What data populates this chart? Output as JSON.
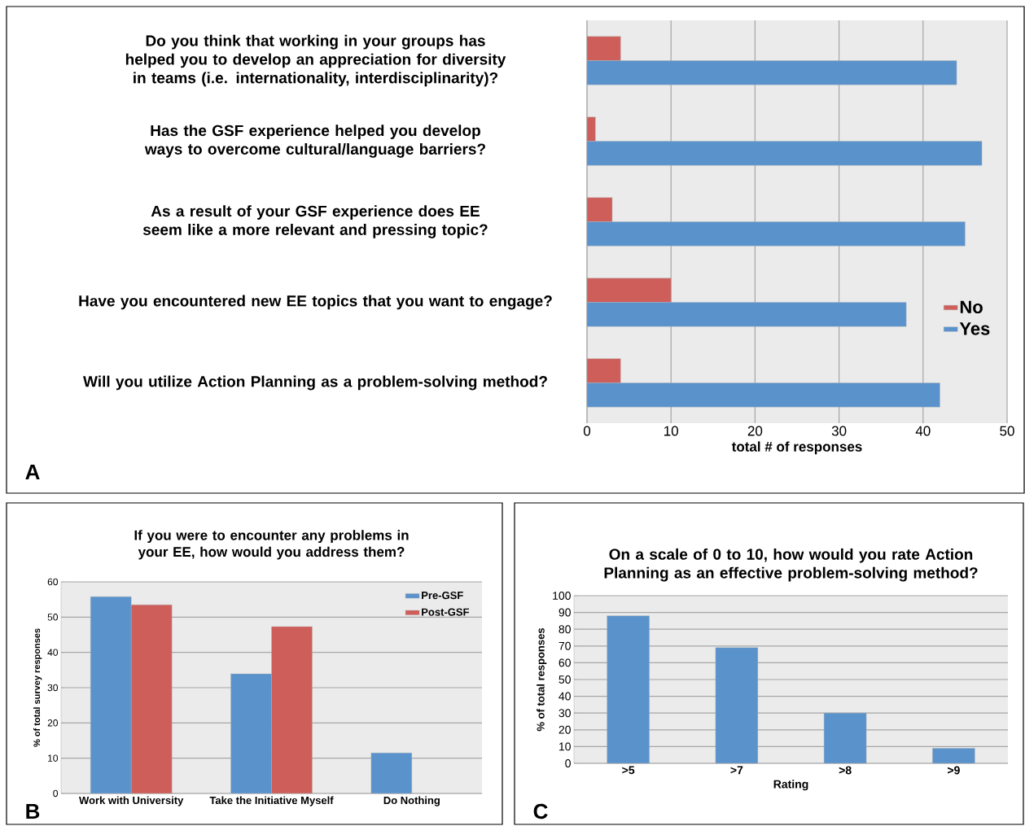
{
  "chart_data": [
    {
      "type": "bar",
      "orientation": "horizontal",
      "categories": [
        "Do you think that working in your groups has helped you to develop an appreciation for diversity in teams (i.e. internationality, interdisciplinarity)?",
        "Has the GSF experience helped you develop ways to overcome cultural/language barriers?",
        "As a result of your GSF experience does EE seem like a more relevant and pressing topic?",
        "Have you encountered new EE topics that you want to engage?",
        "Will you utilize Action Planning as a problem-solving method?"
      ],
      "series": [
        {
          "name": "No",
          "color": "#cd5e5a",
          "values": [
            4,
            1,
            3,
            10,
            4
          ]
        },
        {
          "name": "Yes",
          "color": "#5a92cb",
          "values": [
            44,
            47,
            45,
            38,
            42
          ]
        }
      ],
      "xlabel": "total # of responses",
      "xlim": [
        0,
        50
      ],
      "xticks": [
        0,
        10,
        20,
        30,
        40,
        50
      ],
      "grid": "x",
      "legend": "right",
      "annotations": [
        "A"
      ]
    },
    {
      "type": "bar",
      "title": "If you were to encounter any problems in your EE, how would you address them?",
      "categories": [
        "Work with University",
        "Take the Initiative Myself",
        "Do Nothing"
      ],
      "series": [
        {
          "name": "Pre-GSF",
          "color": "#5a92cb",
          "values": [
            55.8,
            33.9,
            11.5
          ]
        },
        {
          "name": "Post-GSF",
          "color": "#cd5e5a",
          "values": [
            53.5,
            47.3,
            null
          ]
        }
      ],
      "ylabel": "% of total survey responses",
      "ylim": [
        0,
        60
      ],
      "yticks": [
        0,
        10,
        20,
        30,
        40,
        50,
        60
      ],
      "grid": "y",
      "legend": "top right",
      "annotations": [
        "B"
      ]
    },
    {
      "type": "bar",
      "title": "On a scale of 0 to 10, how would you rate Action Planning as an effective problem-solving method?",
      "categories": [
        ">5",
        ">7",
        ">8",
        ">9"
      ],
      "values": [
        88,
        69,
        30,
        9
      ],
      "color": "#5a92cb",
      "xlabel": "Rating",
      "ylabel": "% of total responses",
      "ylim": [
        0,
        100
      ],
      "yticks": [
        0,
        10,
        20,
        30,
        40,
        50,
        60,
        70,
        80,
        90,
        100
      ],
      "grid": "y",
      "annotations": [
        "C"
      ]
    }
  ]
}
